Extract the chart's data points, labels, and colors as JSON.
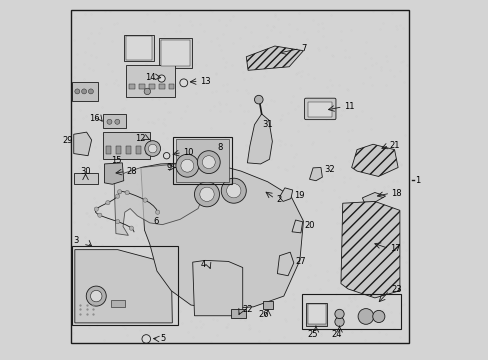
{
  "bg_color": "#d4d4d4",
  "line_color": "#1a1a1a",
  "text_color": "#000000",
  "figsize": [
    4.89,
    3.6
  ],
  "dpi": 100
}
